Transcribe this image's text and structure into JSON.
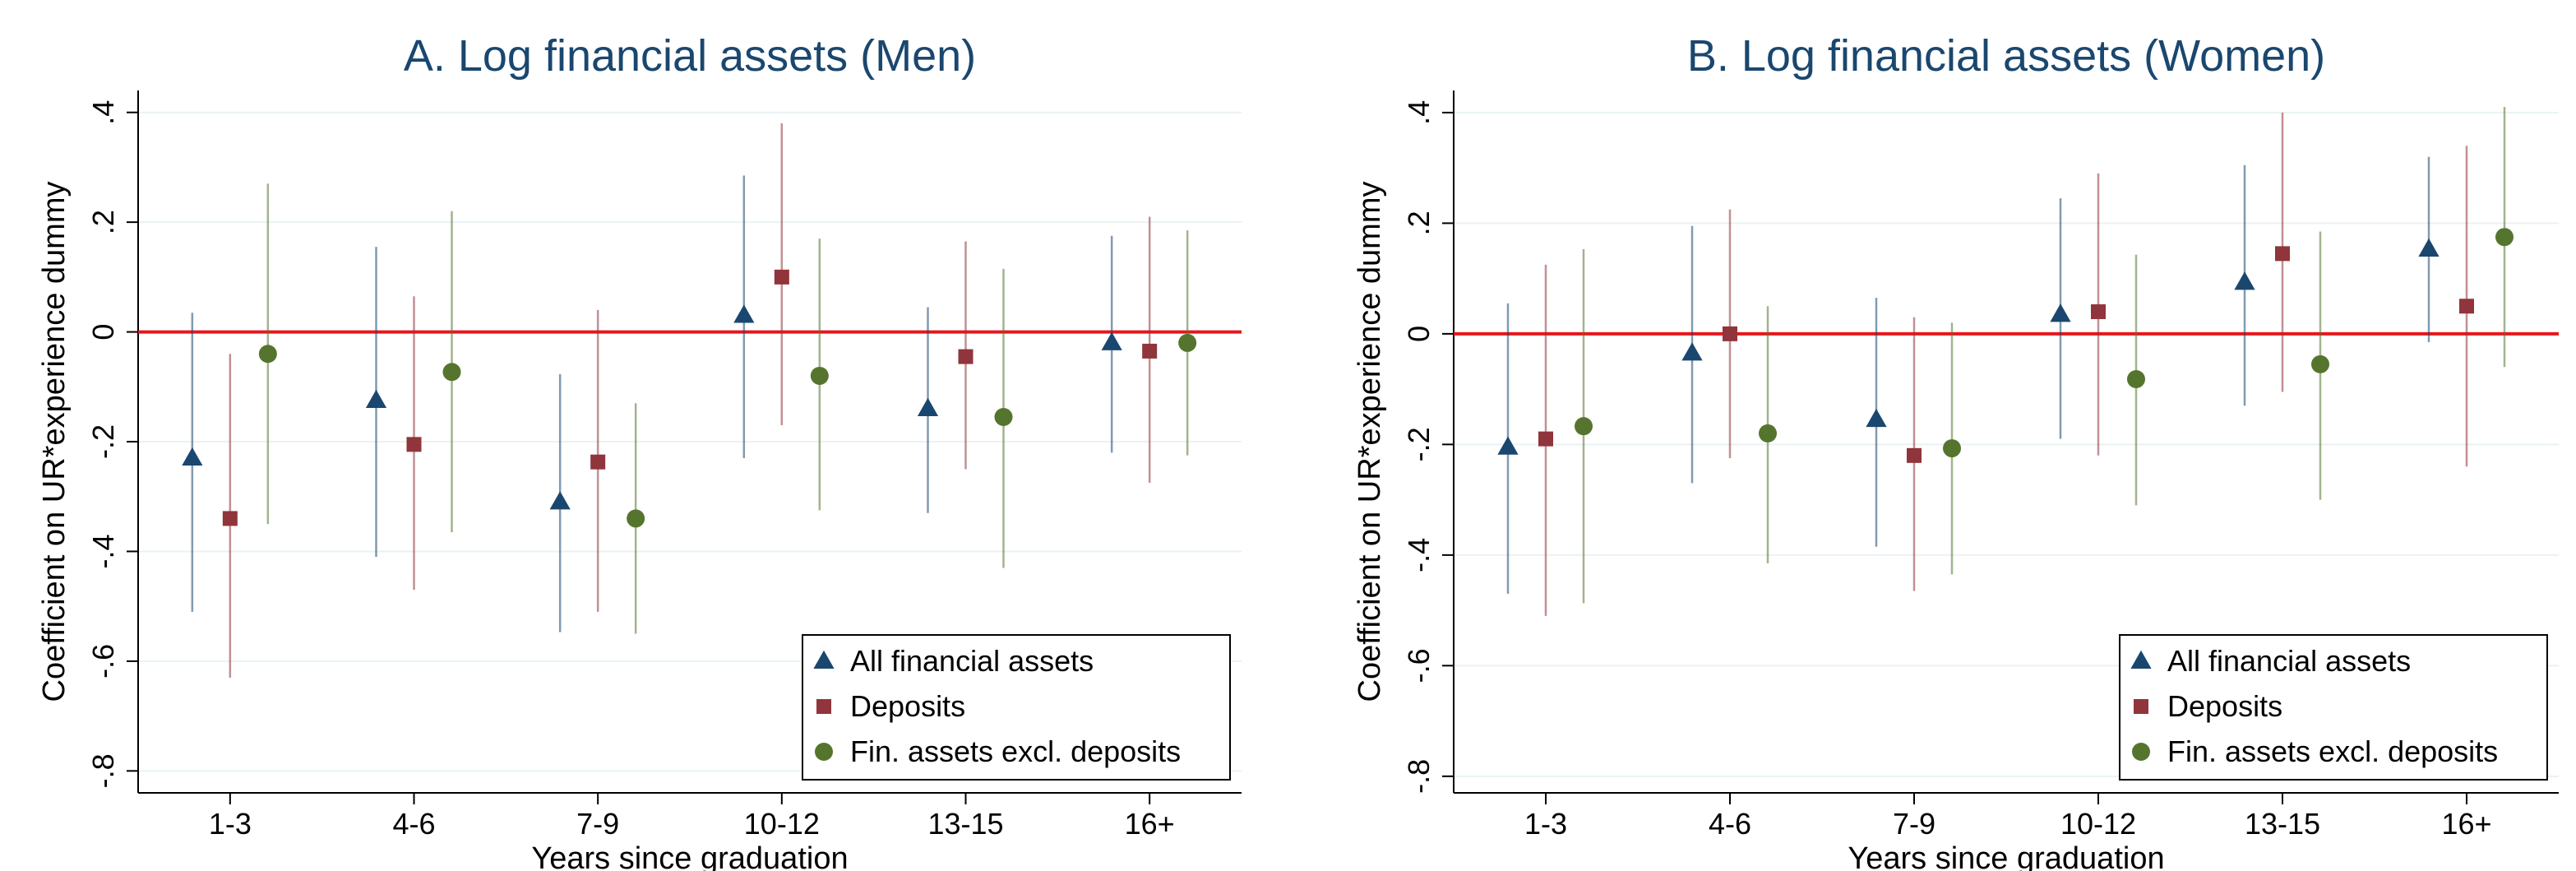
{
  "chart_data": [
    {
      "type": "errorbar",
      "title": "A. Log financial assets (Men)",
      "x_label": "Years since graduation",
      "y_label": "Coefficient on UR*experience dummy",
      "categories": [
        "1-3",
        "4-6",
        "7-9",
        "10-12",
        "13-15",
        "16+"
      ],
      "ylim": [
        -0.84,
        0.44
      ],
      "yticks": [
        {
          "value": 0.4,
          "label": ".4"
        },
        {
          "value": 0.2,
          "label": ".2"
        },
        0,
        {
          "value": -0.2,
          "label": "-.2"
        },
        {
          "value": -0.4,
          "label": "-.4"
        },
        {
          "value": -0.6,
          "label": "-.6"
        },
        {
          "value": -0.8,
          "label": "-.8"
        }
      ],
      "grid": true,
      "reference_line": {
        "value": 0,
        "color": "#e8161b"
      },
      "legend": "lower right",
      "series": [
        {
          "name": "All financial assets",
          "marker": "triangle",
          "color": "#1a476f",
          "values": [
            -0.23,
            -0.125,
            -0.31,
            0.03,
            -0.14,
            -0.02
          ],
          "lower": [
            -0.51,
            -0.41,
            -0.547,
            -0.23,
            -0.33,
            -0.22
          ],
          "upper": [
            0.035,
            0.155,
            -0.077,
            0.285,
            0.045,
            0.175
          ]
        },
        {
          "name": "Deposits",
          "marker": "square",
          "color": "#90353b",
          "values": [
            -0.34,
            -0.205,
            -0.237,
            0.1,
            -0.045,
            -0.035
          ],
          "lower": [
            -0.63,
            -0.47,
            -0.51,
            -0.17,
            -0.25,
            -0.275
          ],
          "upper": [
            -0.04,
            0.065,
            0.04,
            0.38,
            0.165,
            0.21
          ]
        },
        {
          "name": "Fin. assets excl. deposits",
          "marker": "circle",
          "color": "#55752f",
          "values": [
            -0.04,
            -0.073,
            -0.34,
            -0.08,
            -0.155,
            -0.02
          ],
          "lower": [
            -0.35,
            -0.365,
            -0.55,
            -0.325,
            -0.43,
            -0.225
          ],
          "upper": [
            0.27,
            0.22,
            -0.13,
            0.17,
            0.115,
            0.185
          ]
        }
      ]
    },
    {
      "type": "errorbar",
      "title": "B. Log financial assets (Women)",
      "x_label": "Years since graduation",
      "y_label": "Coefficient on UR*experience dummy",
      "categories": [
        "1-3",
        "4-6",
        "7-9",
        "10-12",
        "13-15",
        "16+"
      ],
      "ylim": [
        -0.83,
        0.44
      ],
      "yticks": [
        {
          "value": 0.4,
          "label": ".4"
        },
        {
          "value": 0.2,
          "label": ".2"
        },
        0,
        {
          "value": -0.2,
          "label": "-.2"
        },
        {
          "value": -0.4,
          "label": "-.4"
        },
        {
          "value": -0.6,
          "label": "-.6"
        },
        {
          "value": -0.8,
          "label": "-.8"
        }
      ],
      "grid": true,
      "reference_line": {
        "value": 0,
        "color": "#e8161b"
      },
      "legend": "lower right",
      "series": [
        {
          "name": "All financial assets",
          "marker": "triangle",
          "color": "#1a476f",
          "values": [
            -0.205,
            -0.035,
            -0.155,
            0.035,
            0.093,
            0.153
          ],
          "lower": [
            -0.47,
            -0.27,
            -0.385,
            -0.19,
            -0.13,
            -0.015
          ],
          "upper": [
            0.055,
            0.195,
            0.065,
            0.245,
            0.305,
            0.32
          ]
        },
        {
          "name": "Deposits",
          "marker": "square",
          "color": "#90353b",
          "values": [
            -0.19,
            0,
            -0.22,
            0.04,
            0.145,
            0.05
          ],
          "lower": [
            -0.51,
            -0.225,
            -0.465,
            -0.22,
            -0.105,
            -0.24
          ],
          "upper": [
            0.125,
            0.225,
            0.03,
            0.29,
            0.4,
            0.34
          ]
        },
        {
          "name": "Fin. assets excl. deposits",
          "marker": "circle",
          "color": "#55752f",
          "values": [
            -0.167,
            -0.18,
            -0.207,
            -0.082,
            -0.055,
            0.175
          ],
          "lower": [
            -0.487,
            -0.415,
            -0.435,
            -0.31,
            -0.3,
            -0.06
          ],
          "upper": [
            0.153,
            0.05,
            0.02,
            0.143,
            0.185,
            0.41
          ]
        }
      ]
    }
  ]
}
